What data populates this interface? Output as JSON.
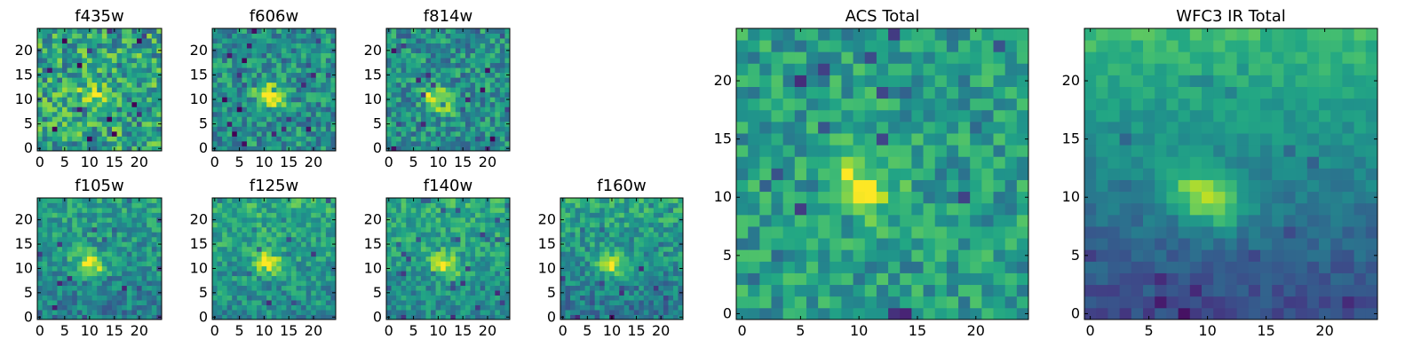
{
  "figure": {
    "panel_count": 9
  },
  "chart_data": [
    {
      "type": "heatmap",
      "title": "f435w",
      "grid": [
        25,
        25
      ],
      "xlim": [
        -0.5,
        24.5
      ],
      "ylim": [
        -0.5,
        24.5
      ],
      "xticks": [
        0,
        5,
        10,
        15,
        20
      ],
      "yticks": [
        0,
        5,
        10,
        15,
        20
      ],
      "colormap": "viridis",
      "description_of_values": "noisy uniform field, faint source near (11,11)",
      "seed": 11,
      "peak": [
        11,
        11
      ],
      "strength": 0.25,
      "noise": 0.45,
      "base": 0.58,
      "gradient": 0
    },
    {
      "type": "heatmap",
      "title": "f606w",
      "grid": [
        25,
        25
      ],
      "xlim": [
        -0.5,
        24.5
      ],
      "ylim": [
        -0.5,
        24.5
      ],
      "xticks": [
        0,
        5,
        10,
        15,
        20
      ],
      "yticks": [
        0,
        5,
        10,
        15,
        20
      ],
      "colormap": "viridis",
      "seed": 23,
      "peak": [
        11,
        11
      ],
      "strength": 0.55,
      "noise": 0.35,
      "base": 0.5,
      "gradient": 0
    },
    {
      "type": "heatmap",
      "title": "f814w",
      "grid": [
        25,
        25
      ],
      "xlim": [
        -0.5,
        24.5
      ],
      "ylim": [
        -0.5,
        24.5
      ],
      "xticks": [
        0,
        5,
        10,
        15,
        20
      ],
      "yticks": [
        0,
        5,
        10,
        15,
        20
      ],
      "colormap": "viridis",
      "seed": 37,
      "peak": [
        10,
        10
      ],
      "strength": 0.5,
      "noise": 0.35,
      "base": 0.5,
      "gradient": 0
    },
    {
      "type": "heatmap",
      "title": "f105w",
      "grid": [
        25,
        25
      ],
      "xlim": [
        -0.5,
        24.5
      ],
      "ylim": [
        -0.5,
        24.5
      ],
      "xticks": [
        0,
        5,
        10,
        15,
        20
      ],
      "yticks": [
        0,
        5,
        10,
        15,
        20
      ],
      "colormap": "viridis",
      "seed": 41,
      "peak": [
        10,
        11
      ],
      "strength": 0.5,
      "noise": 0.28,
      "base": 0.5,
      "gradient": 0.15
    },
    {
      "type": "heatmap",
      "title": "f125w",
      "grid": [
        25,
        25
      ],
      "xlim": [
        -0.5,
        24.5
      ],
      "ylim": [
        -0.5,
        24.5
      ],
      "xticks": [
        0,
        5,
        10,
        15,
        20
      ],
      "yticks": [
        0,
        5,
        10,
        15,
        20
      ],
      "colormap": "viridis",
      "seed": 53,
      "peak": [
        11,
        11
      ],
      "strength": 0.45,
      "noise": 0.28,
      "base": 0.55,
      "gradient": 0.15
    },
    {
      "type": "heatmap",
      "title": "f140w",
      "grid": [
        25,
        25
      ],
      "xlim": [
        -0.5,
        24.5
      ],
      "ylim": [
        -0.5,
        24.5
      ],
      "xticks": [
        0,
        5,
        10,
        15,
        20
      ],
      "yticks": [
        0,
        5,
        10,
        15,
        20
      ],
      "colormap": "viridis",
      "seed": 67,
      "peak": [
        11,
        11
      ],
      "strength": 0.45,
      "noise": 0.26,
      "base": 0.55,
      "gradient": 0.15
    },
    {
      "type": "heatmap",
      "title": "f160w",
      "grid": [
        25,
        25
      ],
      "xlim": [
        -0.5,
        24.5
      ],
      "ylim": [
        -0.5,
        24.5
      ],
      "xticks": [
        0,
        5,
        10,
        15,
        20
      ],
      "yticks": [
        0,
        5,
        10,
        15,
        20
      ],
      "colormap": "viridis",
      "seed": 79,
      "peak": [
        10,
        11
      ],
      "strength": 0.5,
      "noise": 0.28,
      "base": 0.5,
      "gradient": 0.2
    },
    {
      "type": "heatmap",
      "title": "ACS Total",
      "grid": [
        25,
        25
      ],
      "xlim": [
        -0.5,
        24.5
      ],
      "ylim": [
        -0.5,
        24.5
      ],
      "xticks": [
        0,
        5,
        10,
        15,
        20
      ],
      "yticks": [
        0,
        5,
        10,
        15,
        20
      ],
      "colormap": "viridis",
      "seed": 97,
      "peak": [
        10,
        11
      ],
      "strength": 0.45,
      "noise": 0.3,
      "base": 0.55,
      "gradient": 0
    },
    {
      "type": "heatmap",
      "title": "WFC3 IR Total",
      "grid": [
        25,
        25
      ],
      "xlim": [
        -0.5,
        24.5
      ],
      "ylim": [
        -0.5,
        24.5
      ],
      "xticks": [
        0,
        5,
        10,
        15,
        20
      ],
      "yticks": [
        0,
        5,
        10,
        15,
        20
      ],
      "colormap": "viridis",
      "seed": 113,
      "peak": [
        10,
        10
      ],
      "strength": 0.5,
      "noise": 0.12,
      "base": 0.45,
      "gradient": 0.45
    }
  ]
}
